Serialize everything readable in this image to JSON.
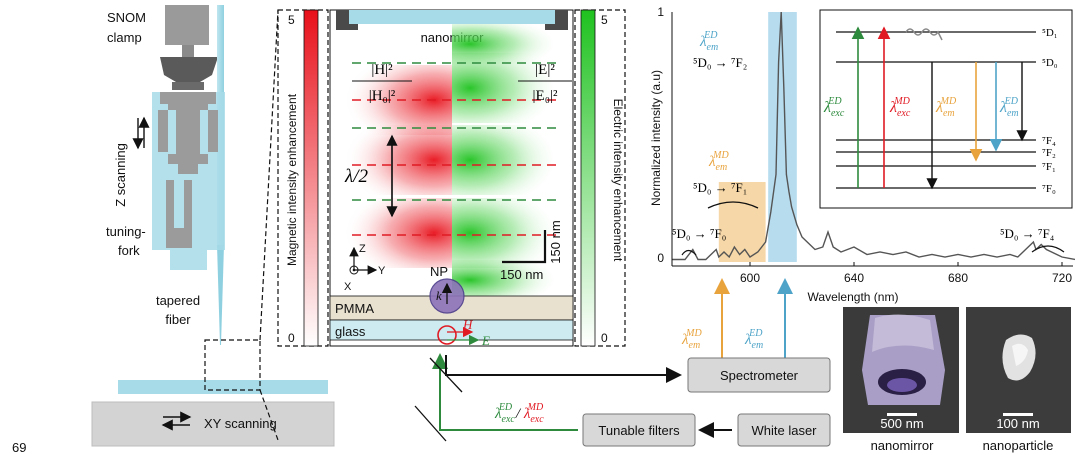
{
  "page_number": "69",
  "setup": {
    "snom_clamp": "SNOM\nclamp",
    "z_scanning": "Z scanning",
    "tuning_fork": "tuning-\nfork",
    "tapered_fiber": "tapered\nfiber",
    "xy_scanning": "XY scanning"
  },
  "cavity": {
    "nanomirror": "nanomirror",
    "h_ratio_num": "|H|²",
    "h_ratio_den": "|H₀|²",
    "e_ratio_num": "|E|²",
    "e_ratio_den": "|E₀|²",
    "half_lambda": "λ/2",
    "axis_z": "Z",
    "axis_y": "Y",
    "axis_x": "X",
    "np": "NP",
    "k": "k",
    "h": "H",
    "e": "E",
    "pmma": "PMMA",
    "glass": "glass",
    "scale_h": "150 nm",
    "scale_v": "150 nm"
  },
  "colorbars": {
    "magnetic_label": "Magnetic intensity enhancement",
    "electric_label": "Electric intensity enhancement",
    "magnetic_max": "5",
    "magnetic_min": "0",
    "electric_max": "5",
    "electric_min": "0",
    "magnetic_color": "#e8101a",
    "electric_color": "#1fc21f"
  },
  "beams": {
    "excitation": "λ_exc^ED / λ_exc^MD",
    "exc_ed": "λ",
    "exc_md": "λ",
    "em_md": "λ_em^MD",
    "em_ed": "λ_em^ED"
  },
  "instruments": {
    "spectrometer": "Spectrometer",
    "tunable_filters": "Tunable filters",
    "white_laser": "White laser"
  },
  "micrographs": {
    "nanomirror_caption": "nanomirror",
    "nanoparticle_caption": "nanoparticle",
    "nanomirror_scale": "500 nm",
    "nanoparticle_scale": "100 nm"
  },
  "chart_data": {
    "type": "line",
    "xlabel": "Wavelength (nm)",
    "ylabel": "Normalized intensity (a.u)",
    "xlim": [
      570,
      725
    ],
    "ylim": [
      0,
      1
    ],
    "xticks": [
      600,
      640,
      680,
      720
    ],
    "yticks": [
      0,
      1
    ],
    "x": [
      570,
      575,
      578,
      580,
      583,
      585,
      587,
      588,
      590,
      592,
      594,
      596,
      598,
      600,
      603,
      606,
      608,
      610,
      611,
      612,
      613,
      614,
      615,
      616,
      618,
      620,
      622,
      625,
      628,
      630,
      632,
      635,
      640,
      645,
      650,
      655,
      660,
      665,
      670,
      675,
      680,
      685,
      690,
      695,
      700,
      703,
      705,
      707,
      709,
      710,
      712,
      714,
      716,
      718,
      720,
      725
    ],
    "y": [
      0.01,
      0.01,
      0.05,
      0.01,
      0.01,
      0.03,
      0.05,
      0.02,
      0.04,
      0.02,
      0.06,
      0.03,
      0.05,
      0.02,
      0.04,
      0.08,
      0.2,
      0.35,
      0.8,
      1.0,
      0.7,
      0.35,
      0.28,
      0.22,
      0.15,
      0.1,
      0.08,
      0.05,
      0.06,
      0.12,
      0.06,
      0.04,
      0.06,
      0.03,
      0.04,
      0.03,
      0.04,
      0.02,
      0.03,
      0.02,
      0.03,
      0.02,
      0.03,
      0.02,
      0.03,
      0.02,
      0.04,
      0.06,
      0.08,
      0.05,
      0.07,
      0.05,
      0.04,
      0.03,
      0.02,
      0.01
    ],
    "line_color": "#555555",
    "band_md": [
      588,
      606
    ],
    "band_ed": [
      607,
      618
    ],
    "band_md_color": "#f6d7a7",
    "band_ed_color": "#b6dcee",
    "annotations": {
      "ed_label": "λ_em^ED",
      "ed_transition": "⁵D₀ → ⁷F₂",
      "md_label": "λ_em^MD",
      "md_transition": "⁵D₀ → ⁷F₁",
      "f0_transition": "⁵D₀ → ⁷F₀",
      "f4_transition": "⁵D₀ → ⁷F₄"
    }
  },
  "levels": {
    "d1": "⁵D₁",
    "d0": "⁵D₀",
    "f4": "⁷F₄",
    "f2": "⁷F₂",
    "f1": "⁷F₁",
    "f0": "⁷F₀",
    "exc_ed": "λ_exc^ED",
    "exc_md": "λ_exc^MD",
    "em_md": "λ_em^MD",
    "em_ed": "λ_em^ED"
  },
  "colors": {
    "green": "#2e8b3e",
    "red": "#e01b24",
    "orange": "#e8a33d",
    "blue": "#4ea4c8",
    "fiber": "#a7dbe8"
  }
}
